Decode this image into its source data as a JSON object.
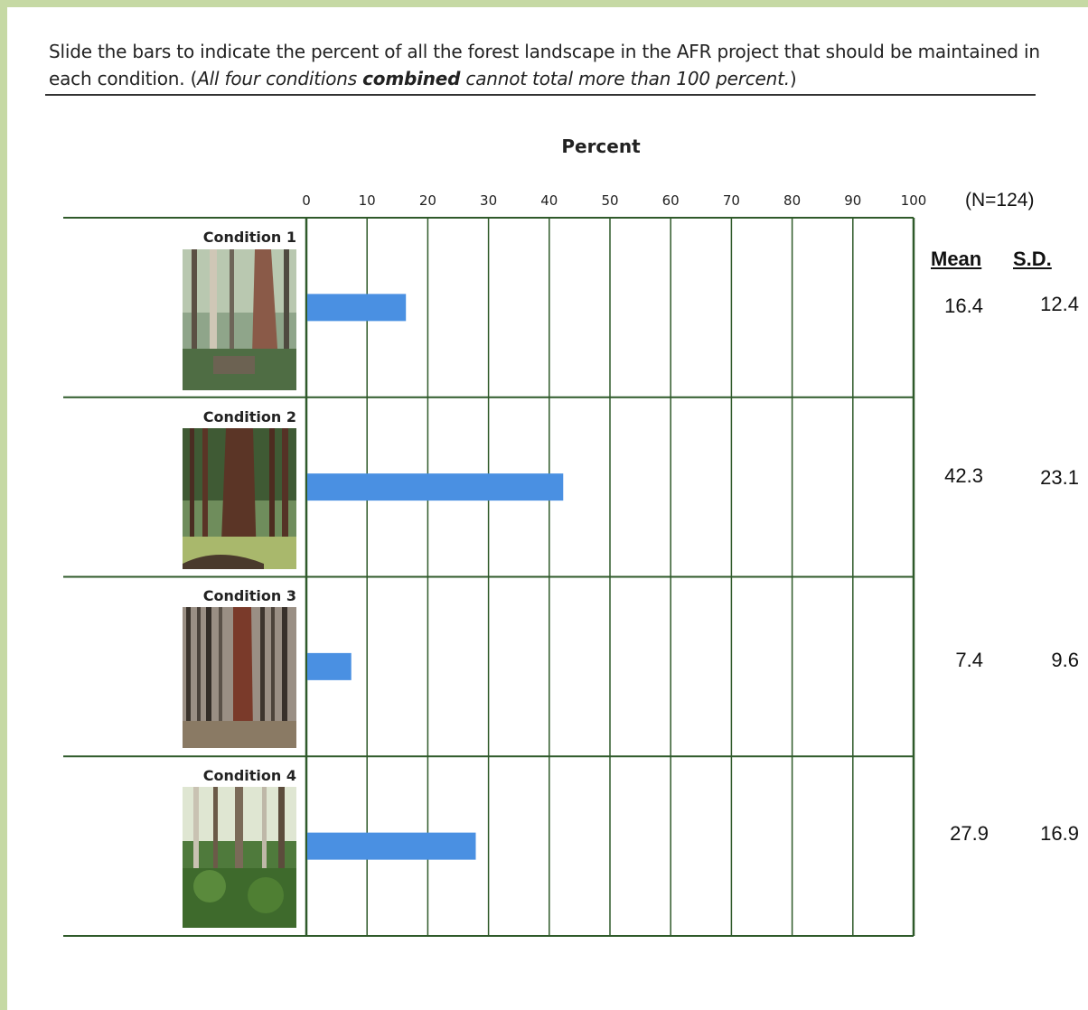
{
  "instructions": {
    "part1": "Slide the bars to indicate the percent of all the forest landscape in the AFR project that should be maintained in each condition. (",
    "part2_italic": "All four conditions ",
    "part3_bold_italic": "combined",
    "part4_italic": " cannot total more than 100 percent.",
    "part5": ")"
  },
  "sample_size": "(N=124)",
  "columns": {
    "mean": "Mean",
    "sd": "S.D."
  },
  "stats": [
    {
      "mean": "16.4",
      "sd": "12.4"
    },
    {
      "mean": "42.3",
      "sd": "23.1"
    },
    {
      "mean": "7.4",
      "sd": "9.6"
    },
    {
      "mean": "27.9",
      "sd": "16.9"
    }
  ],
  "conditions": [
    "Condition 1",
    "Condition 2",
    "Condition 3",
    "Condition 4"
  ],
  "colors": {
    "bar": "#4a90e2",
    "grid": "#2f5a2a",
    "background": "#c6d9a4"
  },
  "chart_data": {
    "type": "bar",
    "orientation": "horizontal",
    "title": "Percent",
    "categories": [
      "Condition 1",
      "Condition 2",
      "Condition 3",
      "Condition 4"
    ],
    "values": [
      16.4,
      42.3,
      7.4,
      27.9
    ],
    "xlim": [
      0,
      100
    ],
    "xticks": [
      "0",
      "10",
      "20",
      "30",
      "40",
      "50",
      "60",
      "70",
      "80",
      "90",
      "100"
    ],
    "grid": true
  }
}
